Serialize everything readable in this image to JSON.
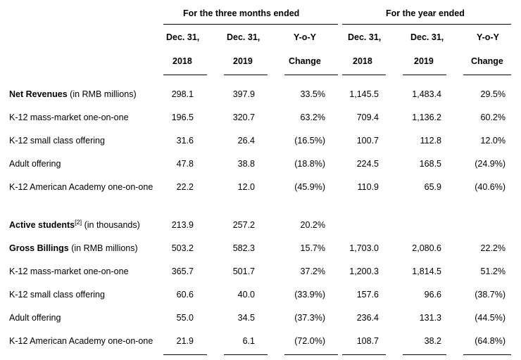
{
  "header": {
    "group_three_months": "For the three months ended",
    "group_year": "For the year ended",
    "columns": [
      {
        "top": "Dec. 31,",
        "bottom": "2018"
      },
      {
        "top": "Dec. 31,",
        "bottom": "2019"
      },
      {
        "top": "Y-o-Y",
        "bottom": "Change"
      },
      {
        "top": "Dec. 31,",
        "bottom": "2018"
      },
      {
        "top": "Dec. 31,",
        "bottom": "2019"
      },
      {
        "top": "Y-o-Y",
        "bottom": "Change"
      }
    ]
  },
  "rows": [
    {
      "label_bold": "Net Revenues",
      "label_rest": " (in RMB millions)",
      "values": [
        "298.1",
        "397.9",
        "33.5%",
        "1,145.5",
        "1,483.4",
        "29.5%"
      ]
    },
    {
      "label": "K-12 mass-market one-on-one",
      "values": [
        "196.5",
        "320.7",
        "63.2%",
        "709.4",
        "1,136.2",
        "60.2%"
      ]
    },
    {
      "label": "K-12 small class offering",
      "values": [
        "31.6",
        "26.4",
        "(16.5%)",
        "100.7",
        "112.8",
        "12.0%"
      ]
    },
    {
      "label": "Adult offering",
      "values": [
        "47.8",
        "38.8",
        "(18.8%)",
        "224.5",
        "168.5",
        "(24.9%)"
      ]
    },
    {
      "label": "K-12 American Academy one-on-one",
      "values": [
        "22.2",
        "12.0",
        "(45.9%)",
        "110.9",
        "65.9",
        "(40.6%)"
      ]
    },
    {
      "label_bold": "Active students",
      "footnote": "[2]",
      "label_rest": " (in thousands)",
      "values": [
        "213.9",
        "257.2",
        "20.2%",
        "",
        "",
        ""
      ]
    },
    {
      "label_bold": "Gross Billings",
      "label_rest": " (in RMB millions)",
      "values": [
        "503.2",
        "582.3",
        "15.7%",
        "1,703.0",
        "2,080.6",
        "22.2%"
      ]
    },
    {
      "label": "K-12 mass-market one-on-one",
      "values": [
        "365.7",
        "501.7",
        "37.2%",
        "1,200.3",
        "1,814.5",
        "51.2%"
      ]
    },
    {
      "label": "K-12 small class offering",
      "values": [
        "60.6",
        "40.0",
        "(33.9%)",
        "157.6",
        "96.6",
        "(38.7%)"
      ]
    },
    {
      "label": "Adult offering",
      "values": [
        "55.0",
        "34.5",
        "(37.3%)",
        "236.4",
        "131.3",
        "(44.5%)"
      ]
    },
    {
      "label": "K-12 American Academy one-on-one",
      "values": [
        "21.9",
        "6.1",
        "(72.0%)",
        "108.7",
        "38.2",
        "(64.8%)"
      ]
    }
  ]
}
